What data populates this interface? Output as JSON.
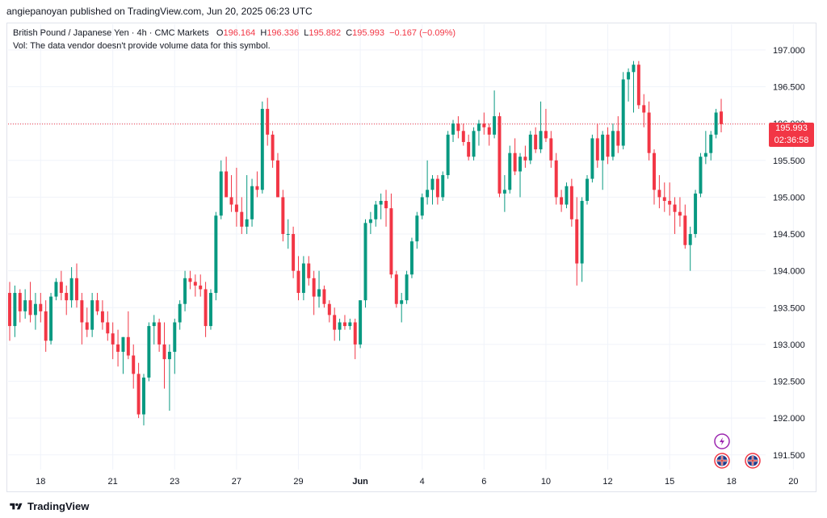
{
  "header": {
    "published_line": "angiepanoyan published on TradingView.com, Jun 20, 2025 06:23 UTC"
  },
  "legend": {
    "symbol": "British Pound / Japanese Yen · 4h · CMC Markets",
    "open_label": "O",
    "open": "196.164",
    "high_label": "H",
    "high": "196.336",
    "low_label": "L",
    "low": "195.882",
    "close_label": "C",
    "close": "195.993",
    "change": "−0.167 (−0.09%)",
    "volume_note": "Vol: The data vendor doesn't provide volume data for this symbol."
  },
  "current_price": {
    "price": "195.993",
    "countdown": "02:36:58",
    "color": "#f23645"
  },
  "colors": {
    "up": "#089981",
    "down": "#f23645",
    "grid": "#f0f3fa",
    "axis_text": "#131722"
  },
  "footer": {
    "brand": "TradingView"
  },
  "chart_data": {
    "type": "candlestick",
    "title": "British Pound / Japanese Yen · 4h · CMC Markets",
    "ylim": [
      191.3,
      197.35
    ],
    "y_ticks": [
      "197.000",
      "196.500",
      "196.000",
      "195.500",
      "195.000",
      "194.500",
      "194.000",
      "193.500",
      "193.000",
      "192.500",
      "192.000",
      "191.500"
    ],
    "y_tick_values": [
      197.0,
      196.5,
      196.0,
      195.5,
      195.0,
      194.5,
      194.0,
      193.5,
      193.0,
      192.5,
      192.0,
      191.5
    ],
    "x_ticks": [
      {
        "label": "18",
        "index": 6
      },
      {
        "label": "21",
        "index": 20
      },
      {
        "label": "23",
        "index": 32
      },
      {
        "label": "27",
        "index": 44
      },
      {
        "label": "29",
        "index": 56
      },
      {
        "label": "Jun",
        "index": 68
      },
      {
        "label": "4",
        "index": 80
      },
      {
        "label": "6",
        "index": 92
      },
      {
        "label": "10",
        "index": 104
      },
      {
        "label": "12",
        "index": 116
      },
      {
        "label": "15",
        "index": 128
      },
      {
        "label": "18",
        "index": 140
      },
      {
        "label": "20",
        "index": 152
      }
    ],
    "last_price": 195.993,
    "candles": [
      [
        193.7,
        193.85,
        193.05,
        193.25
      ],
      [
        193.25,
        193.8,
        193.1,
        193.7
      ],
      [
        193.7,
        193.75,
        193.3,
        193.45
      ],
      [
        193.45,
        193.75,
        193.35,
        193.6
      ],
      [
        193.6,
        193.85,
        193.3,
        193.4
      ],
      [
        193.4,
        193.7,
        193.2,
        193.55
      ],
      [
        193.55,
        193.7,
        193.3,
        193.45
      ],
      [
        193.45,
        193.6,
        192.9,
        193.05
      ],
      [
        193.05,
        193.7,
        193.0,
        193.65
      ],
      [
        193.65,
        193.9,
        193.6,
        193.85
      ],
      [
        193.85,
        194.0,
        193.6,
        193.7
      ],
      [
        193.7,
        193.8,
        193.4,
        193.6
      ],
      [
        193.6,
        194.05,
        193.5,
        193.9
      ],
      [
        193.9,
        194.1,
        193.5,
        193.6
      ],
      [
        193.6,
        193.7,
        193.0,
        193.3
      ],
      [
        193.3,
        193.5,
        193.1,
        193.2
      ],
      [
        193.2,
        193.7,
        193.1,
        193.6
      ],
      [
        193.6,
        193.7,
        193.4,
        193.45
      ],
      [
        193.45,
        193.6,
        193.2,
        193.3
      ],
      [
        193.3,
        193.45,
        193.05,
        193.15
      ],
      [
        193.15,
        193.3,
        192.8,
        193.0
      ],
      [
        193.0,
        193.2,
        192.7,
        192.9
      ],
      [
        192.9,
        193.1,
        192.6,
        193.1
      ],
      [
        193.1,
        193.45,
        192.8,
        192.85
      ],
      [
        192.85,
        193.0,
        192.4,
        192.6
      ],
      [
        192.6,
        192.75,
        192.0,
        192.05
      ],
      [
        192.05,
        192.6,
        191.9,
        192.55
      ],
      [
        192.55,
        193.3,
        192.5,
        193.25
      ],
      [
        193.25,
        193.4,
        193.0,
        193.3
      ],
      [
        193.3,
        193.35,
        192.9,
        193.0
      ],
      [
        193.0,
        193.3,
        192.4,
        192.8
      ],
      [
        192.8,
        193.0,
        192.1,
        192.9
      ],
      [
        192.9,
        193.35,
        192.6,
        193.3
      ],
      [
        193.3,
        193.6,
        193.2,
        193.55
      ],
      [
        193.55,
        194.0,
        193.45,
        193.9
      ],
      [
        193.9,
        194.0,
        193.75,
        193.85
      ],
      [
        193.85,
        193.95,
        193.65,
        193.8
      ],
      [
        193.8,
        193.95,
        193.65,
        193.75
      ],
      [
        193.75,
        193.85,
        193.1,
        193.25
      ],
      [
        193.25,
        193.75,
        193.2,
        193.7
      ],
      [
        193.7,
        194.8,
        193.6,
        194.75
      ],
      [
        194.75,
        195.5,
        194.7,
        195.35
      ],
      [
        195.35,
        195.55,
        195.0,
        195.0
      ],
      [
        195.0,
        195.3,
        194.8,
        194.9
      ],
      [
        194.9,
        195.4,
        194.6,
        194.8
      ],
      [
        194.8,
        195.0,
        194.5,
        194.6
      ],
      [
        194.6,
        195.3,
        194.5,
        194.7
      ],
      [
        194.7,
        195.25,
        194.6,
        195.15
      ],
      [
        195.15,
        195.35,
        195.0,
        195.1
      ],
      [
        195.1,
        196.3,
        195.05,
        196.2
      ],
      [
        196.2,
        196.35,
        195.7,
        195.85
      ],
      [
        195.85,
        195.9,
        195.4,
        195.5
      ],
      [
        195.5,
        195.6,
        195.0,
        195.0
      ],
      [
        195.0,
        195.1,
        194.4,
        194.5
      ],
      [
        194.5,
        194.7,
        194.3,
        194.5
      ],
      [
        194.5,
        194.6,
        193.9,
        194.0
      ],
      [
        194.0,
        194.2,
        193.6,
        193.7
      ],
      [
        193.7,
        194.2,
        193.6,
        194.1
      ],
      [
        194.1,
        194.2,
        193.8,
        193.9
      ],
      [
        193.9,
        194.0,
        193.4,
        193.65
      ],
      [
        193.65,
        194.0,
        193.5,
        193.75
      ],
      [
        193.75,
        193.8,
        193.5,
        193.55
      ],
      [
        193.55,
        193.6,
        193.3,
        193.4
      ],
      [
        193.4,
        193.5,
        193.05,
        193.2
      ],
      [
        193.2,
        193.35,
        193.05,
        193.3
      ],
      [
        193.3,
        193.4,
        193.2,
        193.25
      ],
      [
        193.25,
        193.35,
        193.2,
        193.3
      ],
      [
        193.3,
        193.35,
        192.8,
        193.0
      ],
      [
        193.0,
        193.6,
        192.95,
        193.6
      ],
      [
        193.6,
        194.7,
        193.5,
        194.65
      ],
      [
        194.65,
        194.8,
        194.5,
        194.7
      ],
      [
        194.7,
        194.95,
        194.6,
        194.9
      ],
      [
        194.9,
        195.05,
        194.7,
        194.95
      ],
      [
        194.95,
        195.1,
        194.6,
        194.85
      ],
      [
        194.85,
        195.05,
        193.9,
        193.95
      ],
      [
        193.95,
        194.0,
        193.5,
        193.55
      ],
      [
        193.55,
        193.7,
        193.3,
        193.6
      ],
      [
        193.6,
        194.0,
        193.55,
        193.95
      ],
      [
        193.95,
        194.45,
        193.9,
        194.4
      ],
      [
        194.4,
        194.8,
        194.3,
        194.75
      ],
      [
        194.75,
        195.05,
        194.7,
        195.0
      ],
      [
        195.0,
        195.5,
        194.9,
        195.1
      ],
      [
        195.1,
        195.3,
        194.9,
        195.25
      ],
      [
        195.25,
        195.3,
        194.9,
        195.0
      ],
      [
        195.0,
        195.35,
        194.95,
        195.3
      ],
      [
        195.3,
        195.9,
        195.25,
        195.85
      ],
      [
        195.85,
        196.05,
        195.75,
        196.0
      ],
      [
        196.0,
        196.1,
        195.8,
        195.9
      ],
      [
        195.9,
        196.0,
        195.7,
        195.75
      ],
      [
        195.75,
        195.85,
        195.5,
        195.55
      ],
      [
        195.55,
        195.95,
        195.5,
        195.9
      ],
      [
        195.9,
        196.05,
        195.7,
        196.0
      ],
      [
        196.0,
        196.15,
        195.85,
        195.95
      ],
      [
        195.95,
        196.0,
        195.7,
        195.85
      ],
      [
        195.85,
        196.45,
        195.8,
        196.1
      ],
      [
        196.1,
        196.15,
        195.0,
        195.05
      ],
      [
        195.05,
        195.3,
        194.8,
        195.1
      ],
      [
        195.1,
        195.7,
        195.05,
        195.6
      ],
      [
        195.6,
        195.8,
        195.3,
        195.35
      ],
      [
        195.35,
        195.6,
        195.0,
        195.55
      ],
      [
        195.55,
        195.7,
        195.4,
        195.5
      ],
      [
        195.5,
        195.9,
        195.45,
        195.85
      ],
      [
        195.85,
        195.95,
        195.6,
        195.65
      ],
      [
        195.65,
        196.3,
        195.6,
        195.9
      ],
      [
        195.9,
        196.2,
        195.75,
        195.8
      ],
      [
        195.8,
        195.9,
        195.4,
        195.5
      ],
      [
        195.5,
        195.6,
        194.9,
        195.0
      ],
      [
        195.0,
        195.1,
        194.8,
        194.9
      ],
      [
        194.9,
        195.2,
        194.85,
        195.15
      ],
      [
        195.15,
        195.25,
        194.6,
        194.7
      ],
      [
        194.7,
        195.0,
        193.8,
        194.1
      ],
      [
        194.1,
        195.0,
        193.85,
        194.95
      ],
      [
        194.95,
        195.3,
        194.9,
        195.25
      ],
      [
        195.25,
        195.85,
        195.2,
        195.8
      ],
      [
        195.8,
        196.0,
        195.4,
        195.5
      ],
      [
        195.5,
        195.9,
        195.1,
        195.85
      ],
      [
        195.85,
        195.95,
        195.45,
        195.55
      ],
      [
        195.55,
        196.0,
        195.5,
        195.9
      ],
      [
        195.9,
        196.1,
        195.6,
        195.7
      ],
      [
        195.7,
        196.7,
        195.65,
        196.6
      ],
      [
        196.6,
        196.75,
        196.3,
        196.7
      ],
      [
        196.7,
        196.85,
        196.15,
        196.8
      ],
      [
        196.8,
        196.85,
        196.2,
        196.25
      ],
      [
        196.25,
        196.4,
        195.95,
        196.15
      ],
      [
        196.15,
        196.3,
        195.5,
        195.6
      ],
      [
        195.6,
        195.65,
        194.9,
        195.1
      ],
      [
        195.1,
        195.3,
        194.85,
        195.0
      ],
      [
        195.0,
        195.2,
        194.8,
        194.95
      ],
      [
        194.95,
        195.2,
        194.75,
        194.9
      ],
      [
        194.9,
        195.0,
        194.5,
        194.8
      ],
      [
        194.8,
        195.0,
        194.6,
        194.75
      ],
      [
        194.75,
        194.9,
        194.3,
        194.35
      ],
      [
        194.35,
        194.6,
        194.0,
        194.5
      ],
      [
        194.5,
        195.1,
        194.45,
        195.05
      ],
      [
        195.05,
        195.6,
        195.0,
        195.55
      ],
      [
        195.55,
        195.9,
        195.45,
        195.6
      ],
      [
        195.6,
        195.9,
        195.5,
        195.85
      ],
      [
        195.85,
        196.2,
        195.8,
        196.15
      ],
      [
        196.164,
        196.336,
        195.882,
        195.993
      ]
    ]
  }
}
